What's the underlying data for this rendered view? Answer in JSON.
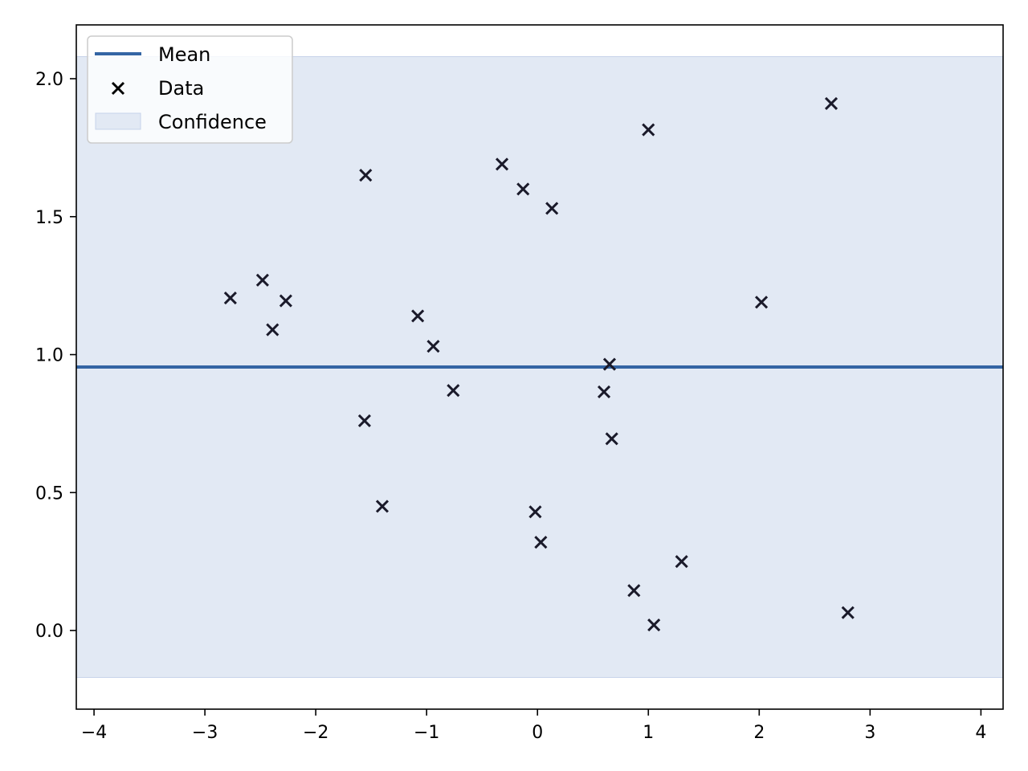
{
  "chart_data": {
    "type": "scatter",
    "title": "",
    "xlabel": "",
    "ylabel": "",
    "xlim": [
      -4.16,
      4.2
    ],
    "ylim": [
      -0.285,
      2.195
    ],
    "xticks": [
      -4,
      -3,
      -2,
      -1,
      0,
      1,
      2,
      3,
      4
    ],
    "xtick_labels": [
      "−4",
      "−3",
      "−2",
      "−1",
      "0",
      "1",
      "2",
      "3",
      "4"
    ],
    "yticks": [
      0.0,
      0.5,
      1.0,
      1.5,
      2.0
    ],
    "ytick_labels": [
      "0.0",
      "0.5",
      "1.0",
      "1.5",
      "2.0"
    ],
    "grid": false,
    "legend_position": "top-left",
    "mean": {
      "name": "Mean",
      "value": 0.955,
      "color": "#3465a4"
    },
    "confidence": {
      "name": "Confidence",
      "lower": -0.17,
      "upper": 2.08,
      "color": "#c7d3ea"
    },
    "series": [
      {
        "name": "Data",
        "marker": "x",
        "color": "#1a1a2a",
        "points": [
          {
            "x": -2.77,
            "y": 1.205
          },
          {
            "x": -2.48,
            "y": 1.27
          },
          {
            "x": -2.39,
            "y": 1.09
          },
          {
            "x": -2.27,
            "y": 1.195
          },
          {
            "x": -1.55,
            "y": 1.65
          },
          {
            "x": -1.56,
            "y": 0.76
          },
          {
            "x": -1.4,
            "y": 0.45
          },
          {
            "x": -1.08,
            "y": 1.14
          },
          {
            "x": -0.94,
            "y": 1.03
          },
          {
            "x": -0.76,
            "y": 0.87
          },
          {
            "x": -0.32,
            "y": 1.69
          },
          {
            "x": -0.13,
            "y": 1.6
          },
          {
            "x": -0.02,
            "y": 0.43
          },
          {
            "x": 0.03,
            "y": 0.32
          },
          {
            "x": 0.13,
            "y": 1.53
          },
          {
            "x": 0.6,
            "y": 0.865
          },
          {
            "x": 0.65,
            "y": 0.965
          },
          {
            "x": 0.67,
            "y": 0.695
          },
          {
            "x": 0.87,
            "y": 0.145
          },
          {
            "x": 1.0,
            "y": 1.815
          },
          {
            "x": 1.05,
            "y": 0.02
          },
          {
            "x": 1.3,
            "y": 0.25
          },
          {
            "x": 2.02,
            "y": 1.19
          },
          {
            "x": 2.65,
            "y": 1.91
          },
          {
            "x": 2.8,
            "y": 0.065
          }
        ]
      }
    ],
    "legend": [
      "Mean",
      "Data",
      "Confidence"
    ]
  }
}
